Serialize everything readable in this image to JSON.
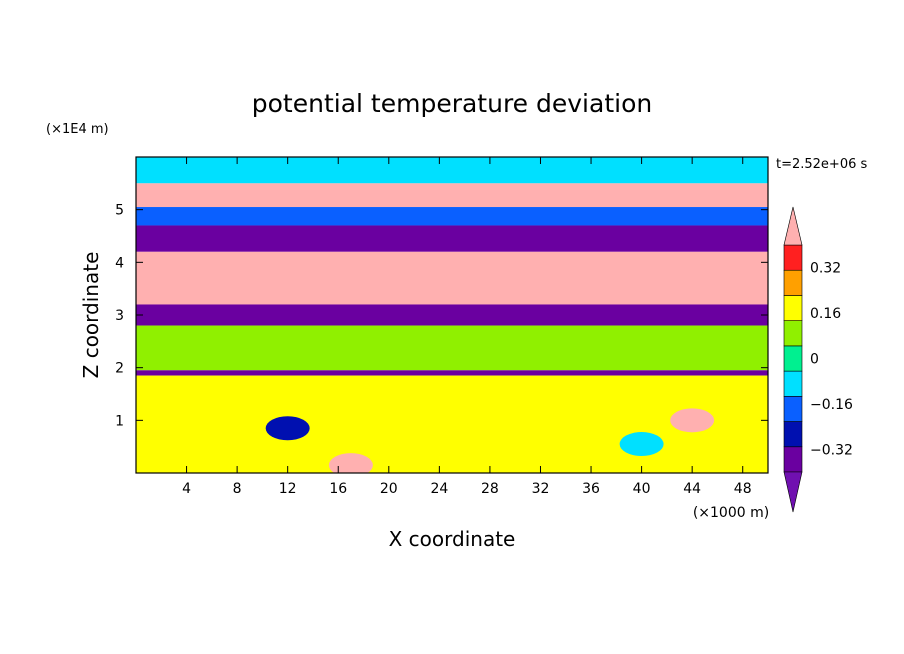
{
  "chart_data": {
    "type": "heatmap",
    "title": "potential temperature deviation",
    "xlabel": "X coordinate",
    "ylabel": "Z coordinate",
    "x_unit": "(×1000 m)",
    "y_unit": "(×1E4 m)",
    "time_label": "t=2.52e+06 s",
    "xlim": [
      0,
      50
    ],
    "ylim": [
      0,
      6
    ],
    "x_ticks": [
      4,
      8,
      12,
      16,
      20,
      24,
      28,
      32,
      36,
      40,
      44,
      48
    ],
    "y_ticks": [
      1,
      2,
      3,
      4,
      5
    ],
    "colorbar": {
      "levels": [
        -0.4,
        -0.32,
        -0.24,
        -0.16,
        -0.08,
        0,
        0.08,
        0.16,
        0.24,
        0.32,
        0.4
      ],
      "tick_labels": [
        "0.32",
        "0.16",
        "0",
        "−0.16",
        "−0.32"
      ],
      "tick_values": [
        0.32,
        0.16,
        0,
        -0.16,
        -0.32
      ],
      "colors": [
        "#7010b0",
        "#6a00a0",
        "#0010b0",
        "#0a60ff",
        "#00e0ff",
        "#00f090",
        "#90f000",
        "#ffff00",
        "#ffa000",
        "#ff2020",
        "#ffb0b0"
      ],
      "extend": "both"
    },
    "field_bands": [
      {
        "z_range": [
          5.5,
          6.0
        ],
        "dominant_value": -0.1
      },
      {
        "z_range": [
          5.05,
          5.5
        ],
        "dominant_value": 0.42
      },
      {
        "z_range": [
          4.7,
          5.05
        ],
        "dominant_value": -0.2
      },
      {
        "z_range": [
          4.2,
          4.7
        ],
        "dominant_value": -0.4
      },
      {
        "z_range": [
          3.2,
          4.2
        ],
        "dominant_value": 0.42
      },
      {
        "z_range": [
          2.8,
          3.2
        ],
        "dominant_value": -0.4
      },
      {
        "z_range": [
          1.95,
          2.8
        ],
        "dominant_value": 0.04
      },
      {
        "z_range": [
          1.85,
          1.95
        ],
        "dominant_value": -0.4
      },
      {
        "z_range": [
          0.0,
          1.85
        ],
        "dominant_value": 0.1
      }
    ],
    "features": [
      {
        "x": 17,
        "z": 0.15,
        "value": 0.42
      },
      {
        "x": 44,
        "z": 1.0,
        "value": 0.42
      },
      {
        "x": 12,
        "z": 0.85,
        "value": -0.32
      },
      {
        "x": 40,
        "z": 0.55,
        "value": -0.16
      }
    ]
  }
}
